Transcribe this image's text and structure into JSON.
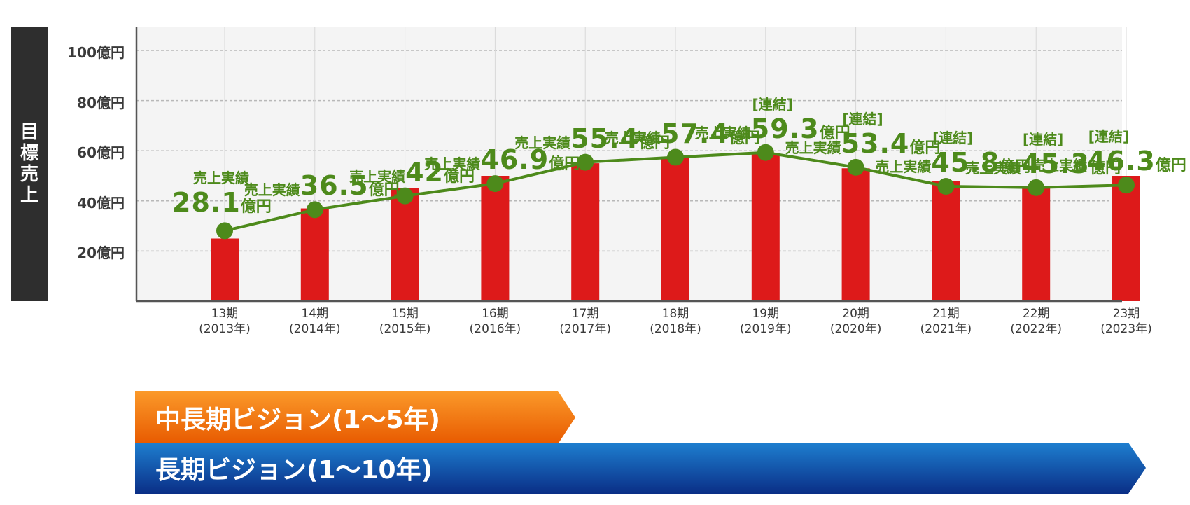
{
  "chart_data": {
    "type": "bar",
    "y_axis_label": "目標売上",
    "y_ticks": [
      "100億円",
      "80億円",
      "60億円",
      "40億円",
      "20億円"
    ],
    "y_tick_values": [
      100,
      80,
      60,
      40,
      20
    ],
    "ylim": [
      0,
      100
    ],
    "grid": true,
    "categories": [
      {
        "period": "13期",
        "year": "(2013年)"
      },
      {
        "period": "14期",
        "year": "(2014年)"
      },
      {
        "period": "15期",
        "year": "(2015年)"
      },
      {
        "period": "16期",
        "year": "(2016年)"
      },
      {
        "period": "17期",
        "year": "(2017年)"
      },
      {
        "period": "18期",
        "year": "(2018年)"
      },
      {
        "period": "19期",
        "year": "(2019年)"
      },
      {
        "period": "20期",
        "year": "(2020年)"
      },
      {
        "period": "21期",
        "year": "(2021年)"
      },
      {
        "period": "22期",
        "year": "(2022年)"
      },
      {
        "period": "23期",
        "year": "(2023年)"
      }
    ],
    "bar_values": [
      25,
      37,
      45,
      50,
      55,
      57,
      59,
      53,
      48,
      46,
      50
    ],
    "line_values": [
      28.1,
      36.5,
      42,
      46.9,
      55.4,
      57.4,
      59.3,
      53.4,
      45.8,
      45.3,
      46.3
    ],
    "callouts": [
      {
        "prefix": "",
        "label": "売上実績",
        "value": "28.1",
        "unit": "億円"
      },
      {
        "prefix": "",
        "label": "売上実績",
        "value": "36.5",
        "unit": "億円"
      },
      {
        "prefix": "",
        "label": "売上実績",
        "value": "42",
        "unit": "億円"
      },
      {
        "prefix": "",
        "label": "売上実績",
        "value": "46.9",
        "unit": "億円"
      },
      {
        "prefix": "",
        "label": "売上実績",
        "value": "55.4",
        "unit": "億円"
      },
      {
        "prefix": "",
        "label": "売上実績",
        "value": "57.4",
        "unit": "億円"
      },
      {
        "prefix": "[連結]",
        "label": "売上実績",
        "value": "59.3",
        "unit": "億円"
      },
      {
        "prefix": "[連結]",
        "label": "売上実績",
        "value": "53.4",
        "unit": "億円"
      },
      {
        "prefix": "[連結]",
        "label": "売上実績",
        "value": "45.8",
        "unit": "億円"
      },
      {
        "prefix": "[連結]",
        "label": "売上実績",
        "value": "45.3",
        "unit": "億円"
      },
      {
        "prefix": "[連結]",
        "label": "売上実績",
        "value": "46.3",
        "unit": "億円"
      }
    ],
    "colors": {
      "bar": "#dd1a1a",
      "line": "#4d8a1b",
      "plot_bg": "#f4f4f4",
      "grid": "#b8b8b8"
    }
  },
  "banners": {
    "mid_term": {
      "label": "中長期ビジョン(1～5年)",
      "color_top": "#fb9a2a",
      "color_bottom": "#e85a00"
    },
    "long_term": {
      "label": "長期ビジョン(1～10年)",
      "color_top": "#1e7fd0",
      "color_bottom": "#0a2e86"
    }
  }
}
